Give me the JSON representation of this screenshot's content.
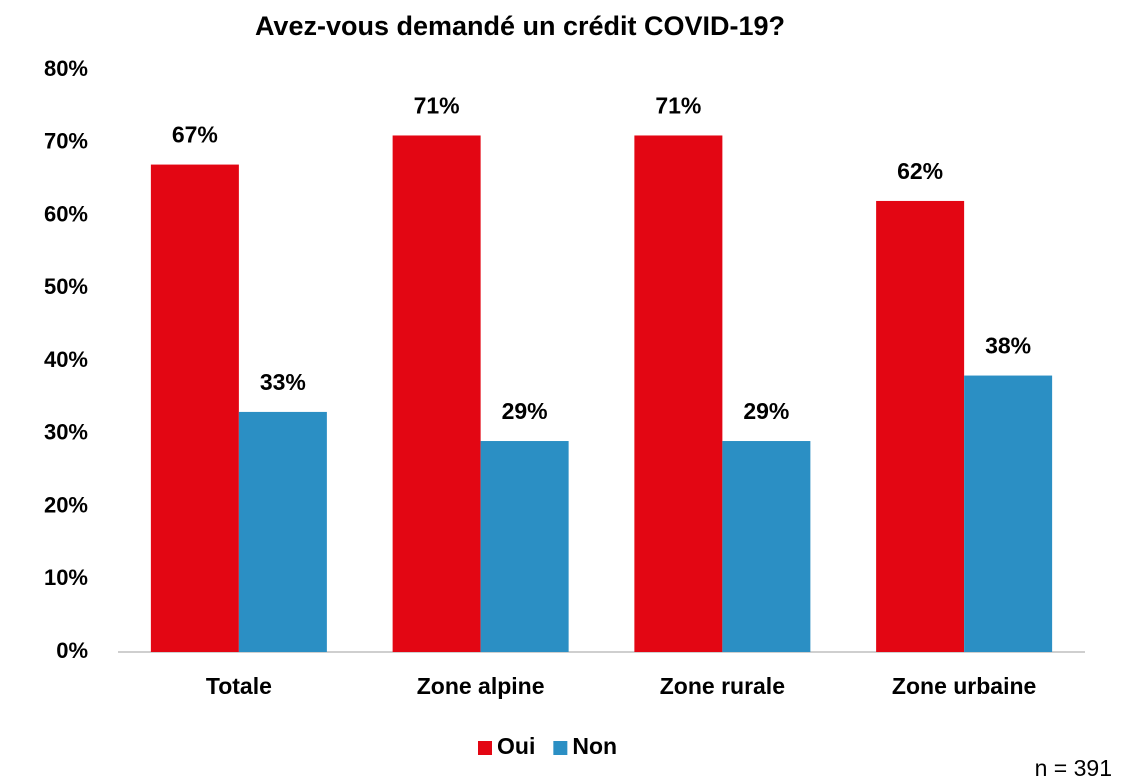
{
  "chart_data": {
    "type": "bar",
    "title": "Avez-vous demandé un crédit COVID-19?",
    "categories": [
      "Totale",
      "Zone alpine",
      "Zone rurale",
      "Zone urbaine"
    ],
    "series": [
      {
        "name": "Oui",
        "color": "#e30613",
        "values": [
          67,
          71,
          71,
          62
        ],
        "value_labels": [
          "67%",
          "71%",
          "71%",
          "62%"
        ]
      },
      {
        "name": "Non",
        "color": "#2b8fc4",
        "values": [
          33,
          29,
          29,
          38
        ],
        "value_labels": [
          "33%",
          "29%",
          "29%",
          "38%"
        ]
      }
    ],
    "ylim": [
      0,
      80
    ],
    "yticks": [
      {
        "value": 0,
        "label": "0%"
      },
      {
        "value": 10,
        "label": "10%"
      },
      {
        "value": 20,
        "label": "20%"
      },
      {
        "value": 30,
        "label": "30%"
      },
      {
        "value": 40,
        "label": "40%"
      },
      {
        "value": 50,
        "label": "50%"
      },
      {
        "value": 60,
        "label": "60%"
      },
      {
        "value": 70,
        "label": "70%"
      },
      {
        "value": 80,
        "label": "80%"
      }
    ],
    "grid": false,
    "legend": "bottom",
    "annotation": "n = 391"
  }
}
